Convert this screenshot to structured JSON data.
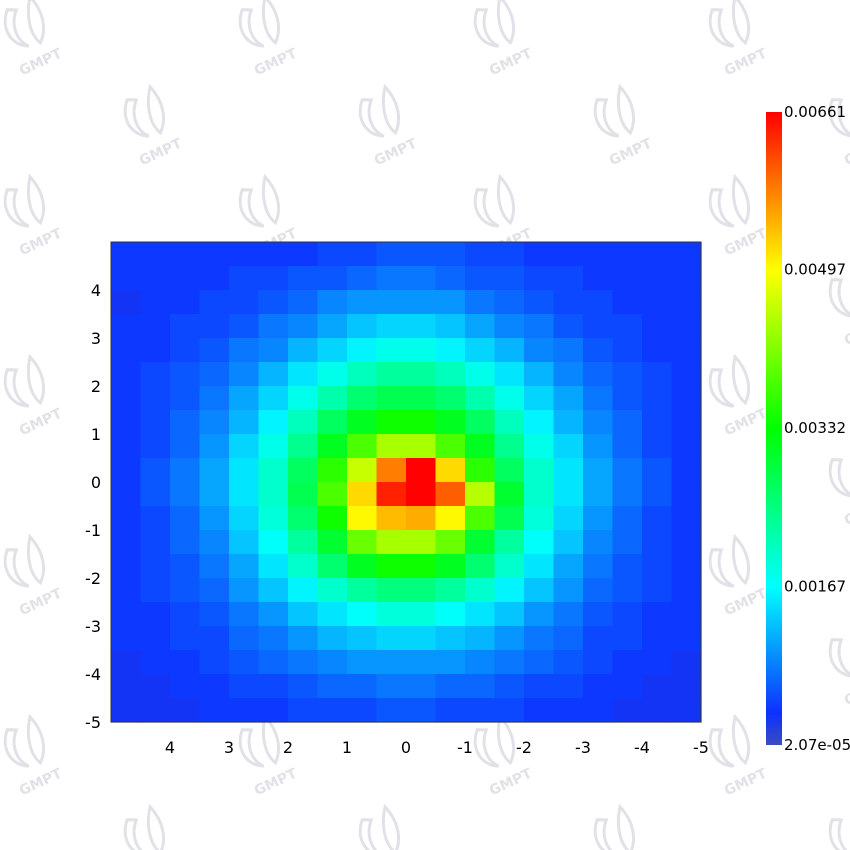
{
  "watermark": {
    "text": "GMPT",
    "color": "#c8cbd6"
  },
  "chart_data": {
    "type": "heatmap",
    "title": "",
    "xlabel": "",
    "ylabel": "",
    "grid": false,
    "x_ticks": [
      "4",
      "3",
      "2",
      "1",
      "0",
      "-1",
      "-2",
      "-3",
      "-4",
      "-5"
    ],
    "y_ticks": [
      "4",
      "3",
      "2",
      "1",
      "0",
      "-1",
      "-2",
      "-3",
      "-4",
      "-5"
    ],
    "xlim": [
      5,
      -5
    ],
    "ylim": [
      -5,
      5
    ],
    "rows": 20,
    "cols": 20,
    "value_range": [
      2.07e-05,
      0.00661
    ],
    "colorbar": {
      "ticks": [
        "0.00661",
        "0.00497",
        "0.00332",
        "0.00167",
        "2.07e-05"
      ],
      "tick_values": [
        0.00661,
        0.00497,
        0.00332,
        0.00167,
        2.07e-05
      ],
      "colors": [
        "#3b4cc0",
        "#0d30ff",
        "#00ffff",
        "#00ff00",
        "#ffff00",
        "#ff0000"
      ]
    },
    "grid_values_top_to_bottom": [
      [
        0.0004,
        0.0004,
        0.0004,
        0.0004,
        0.0004,
        0.0004,
        0.0004,
        0.0005,
        0.0005,
        0.0006,
        0.0006,
        0.0006,
        0.0005,
        0.0005,
        0.0004,
        0.0004,
        0.0004,
        0.0004,
        0.0004,
        0.0004
      ],
      [
        0.0004,
        0.0004,
        0.0004,
        0.0004,
        0.0005,
        0.0005,
        0.0006,
        0.0006,
        0.0007,
        0.0008,
        0.0008,
        0.0007,
        0.0006,
        0.0006,
        0.0005,
        0.0005,
        0.0004,
        0.0004,
        0.0004,
        0.0004
      ],
      [
        0.0003,
        0.0004,
        0.0004,
        0.0005,
        0.0005,
        0.0006,
        0.0007,
        0.0009,
        0.001,
        0.001,
        0.001,
        0.001,
        0.0008,
        0.0007,
        0.0006,
        0.0005,
        0.0005,
        0.0004,
        0.0004,
        0.0004
      ],
      [
        0.0004,
        0.0004,
        0.0005,
        0.0005,
        0.0006,
        0.0008,
        0.0009,
        0.0011,
        0.0013,
        0.0014,
        0.0014,
        0.0013,
        0.0011,
        0.0009,
        0.0008,
        0.0006,
        0.0005,
        0.0005,
        0.0004,
        0.0004
      ],
      [
        0.0004,
        0.0004,
        0.0005,
        0.0006,
        0.0008,
        0.0009,
        0.0012,
        0.0014,
        0.0016,
        0.0018,
        0.0018,
        0.0016,
        0.0014,
        0.0012,
        0.0009,
        0.0008,
        0.0006,
        0.0005,
        0.0004,
        0.0004
      ],
      [
        0.0004,
        0.0005,
        0.0006,
        0.0007,
        0.0009,
        0.0012,
        0.0015,
        0.0018,
        0.0021,
        0.0023,
        0.0023,
        0.0021,
        0.0018,
        0.0015,
        0.0012,
        0.0009,
        0.0007,
        0.0006,
        0.0005,
        0.0004
      ],
      [
        0.0004,
        0.0005,
        0.0006,
        0.0008,
        0.0011,
        0.0014,
        0.0018,
        0.0022,
        0.0026,
        0.0028,
        0.0028,
        0.0026,
        0.0022,
        0.0018,
        0.0014,
        0.0011,
        0.0008,
        0.0006,
        0.0005,
        0.0004
      ],
      [
        0.0004,
        0.0005,
        0.0007,
        0.0009,
        0.0012,
        0.0016,
        0.0021,
        0.0027,
        0.0031,
        0.0034,
        0.0034,
        0.0031,
        0.0027,
        0.0021,
        0.0016,
        0.0012,
        0.0009,
        0.0007,
        0.0005,
        0.0004
      ],
      [
        0.0004,
        0.0005,
        0.0007,
        0.001,
        0.0014,
        0.0018,
        0.0024,
        0.0031,
        0.0038,
        0.0044,
        0.0044,
        0.0038,
        0.0031,
        0.0024,
        0.0018,
        0.0014,
        0.001,
        0.0007,
        0.0005,
        0.0004
      ],
      [
        0.0004,
        0.0006,
        0.0008,
        0.0011,
        0.0015,
        0.002,
        0.0027,
        0.0036,
        0.0046,
        0.0058,
        0.0066,
        0.0052,
        0.0036,
        0.0027,
        0.002,
        0.0015,
        0.0011,
        0.0008,
        0.0006,
        0.0004
      ],
      [
        0.0004,
        0.0006,
        0.0008,
        0.0011,
        0.0015,
        0.002,
        0.0028,
        0.0038,
        0.0052,
        0.0064,
        0.0066,
        0.006,
        0.0045,
        0.003,
        0.002,
        0.0015,
        0.0011,
        0.0008,
        0.0006,
        0.0004
      ],
      [
        0.0004,
        0.0005,
        0.0007,
        0.001,
        0.0014,
        0.0019,
        0.0026,
        0.0034,
        0.005,
        0.0054,
        0.0055,
        0.005,
        0.0038,
        0.0028,
        0.0019,
        0.0014,
        0.001,
        0.0007,
        0.0005,
        0.0004
      ],
      [
        0.0004,
        0.0005,
        0.0007,
        0.0009,
        0.0013,
        0.0017,
        0.0023,
        0.003,
        0.004,
        0.0044,
        0.0044,
        0.004,
        0.003,
        0.0023,
        0.0017,
        0.0013,
        0.0009,
        0.0007,
        0.0005,
        0.0004
      ],
      [
        0.0004,
        0.0005,
        0.0006,
        0.0008,
        0.0011,
        0.0015,
        0.002,
        0.0026,
        0.0031,
        0.0034,
        0.0034,
        0.0031,
        0.0026,
        0.002,
        0.0015,
        0.0011,
        0.0008,
        0.0006,
        0.0005,
        0.0004
      ],
      [
        0.0004,
        0.0005,
        0.0006,
        0.0007,
        0.001,
        0.0013,
        0.0016,
        0.002,
        0.0023,
        0.0025,
        0.0025,
        0.0023,
        0.002,
        0.0016,
        0.0013,
        0.001,
        0.0007,
        0.0006,
        0.0005,
        0.0004
      ],
      [
        0.0004,
        0.0004,
        0.0005,
        0.0006,
        0.0008,
        0.001,
        0.0013,
        0.0015,
        0.0017,
        0.0019,
        0.0019,
        0.0017,
        0.0015,
        0.0013,
        0.001,
        0.0008,
        0.0006,
        0.0005,
        0.0004,
        0.0004
      ],
      [
        0.0004,
        0.0004,
        0.0005,
        0.0005,
        0.0007,
        0.0008,
        0.001,
        0.0012,
        0.0013,
        0.0014,
        0.0014,
        0.0013,
        0.0012,
        0.001,
        0.0008,
        0.0007,
        0.0005,
        0.0005,
        0.0004,
        0.0004
      ],
      [
        0.0003,
        0.0004,
        0.0004,
        0.0005,
        0.0006,
        0.0007,
        0.0008,
        0.0009,
        0.001,
        0.001,
        0.001,
        0.001,
        0.0009,
        0.0008,
        0.0007,
        0.0006,
        0.0005,
        0.0004,
        0.0004,
        0.0003
      ],
      [
        0.0003,
        0.0003,
        0.0004,
        0.0004,
        0.0005,
        0.0005,
        0.0006,
        0.0007,
        0.0007,
        0.0008,
        0.0008,
        0.0007,
        0.0007,
        0.0006,
        0.0005,
        0.0005,
        0.0004,
        0.0004,
        0.0003,
        0.0003
      ],
      [
        0.0003,
        0.0003,
        0.0003,
        0.0004,
        0.0004,
        0.0004,
        0.0005,
        0.0005,
        0.0005,
        0.0006,
        0.0006,
        0.0005,
        0.0005,
        0.0005,
        0.0004,
        0.0004,
        0.0004,
        0.0003,
        0.0003,
        0.0003
      ]
    ]
  }
}
